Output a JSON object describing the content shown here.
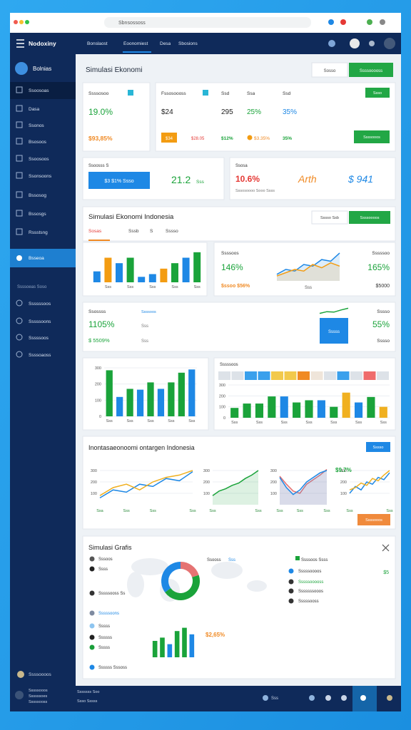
{
  "browser": {
    "address": "Sbnsossoss"
  },
  "nav": {
    "brand": "Nodoxiny",
    "links": [
      "Bonslaost",
      "Eoonomiest",
      "Desa",
      "Sbosions"
    ]
  },
  "sidebar": {
    "title": "Bolnias",
    "items": [
      "Ssoosoas",
      "Dasa",
      "Ssonos",
      "Bsosoos",
      "Ssoosoos",
      "Ssonsoons",
      "Bssosog",
      "Bssosgs",
      "Rssstsng"
    ],
    "active": "Bsseoa",
    "section": "Ssssoeas Soso",
    "items2": [
      "Ssssssoos",
      "Sssssoons",
      "Sssssoos",
      "Ssssoaoss"
    ],
    "footer": [
      "Ssssoooos",
      "Sssssooos",
      "Ssssssoes",
      "Sssssooss"
    ]
  },
  "header": {
    "title": "Simulasi Ekonomi",
    "buttons": [
      "Sosso",
      "Ssssooooss"
    ]
  },
  "kpi": {
    "growth": {
      "label": "Ssssosoo",
      "value": "19.0%",
      "sub": "$93,85%"
    },
    "budget": {
      "label": "Fssosoooss",
      "labels": [
        "Ssd",
        "Ssa",
        "Ssd"
      ],
      "values": [
        "$24",
        "295",
        "25%",
        "35%"
      ],
      "badges": [
        "$34",
        "$28.05",
        "$12%",
        "$3.35%",
        "35%"
      ],
      "buttons": [
        "Ssso",
        "Ssssooos"
      ]
    },
    "trade": {
      "label": "Ssoosss S",
      "button": "$3 $1% Ssso",
      "value": "21.2",
      "sub": "Sss"
    },
    "inflation": {
      "label": "Ssosa",
      "value": "10.6%",
      "sub": "Sssosoooo Sooo Ssss",
      "trend": "Arth",
      "index": "$ 941"
    }
  },
  "simulation": {
    "title": "Simulasi Ekonomi Indonesia",
    "tabs": [
      "Sosas",
      "Sssb",
      "S",
      "Sssso"
    ],
    "buttons": [
      "Sssso Ssb",
      "Ssssoooos"
    ],
    "bars": {
      "type": "bar",
      "ylim": [
        0,
        60
      ],
      "values": [
        20,
        45,
        35,
        45,
        10,
        15,
        25,
        35,
        45,
        55
      ],
      "colors": [
        "#1e88e5",
        "#f39c12",
        "#1e88e5",
        "#1aa33a",
        "#1e88e5",
        "#1e88e5",
        "#f39c12",
        "#1aa33a",
        "#1e88e5",
        "#1aa33a"
      ],
      "categories": [
        null,
        "Sss",
        null,
        "Sss",
        null,
        "Sss",
        null,
        "Sss",
        null,
        "Sss"
      ]
    },
    "growth": {
      "label": "Ssssoos",
      "value": "146%",
      "sub": "$ssoo $56%",
      "axis_label": "Sss",
      "line": {
        "type": "line",
        "ylim": [
          0,
          100
        ],
        "area": true,
        "series": [
          {
            "color": "#1e88e5",
            "values": [
              20,
              35,
              30,
              50,
              45,
              65,
              60,
              85
            ]
          },
          {
            "color": "#f39c12",
            "values": [
              15,
              25,
              35,
              30,
              50,
              40,
              55,
              45
            ]
          }
        ]
      },
      "right_label": "Sssssoo",
      "right_value": "165%",
      "right_sub": "$5000"
    }
  },
  "outlook": {
    "label": "Ssossss",
    "tag": "Ssssoos",
    "value": "1105%",
    "sub": "$ 5509%",
    "mini": [
      "Sss",
      "Sss"
    ],
    "line": {
      "type": "line",
      "ylim": [
        0,
        100
      ],
      "series": [
        {
          "color": "#1aa33a",
          "values": [
            20,
            40,
            35,
            60,
            80
          ]
        }
      ]
    },
    "box": "Sssss",
    "right_label": "Sssso",
    "right_value": "55%",
    "right_sub": "Sssso"
  },
  "gdp": {
    "type": "bar",
    "ylim": [
      0,
      300
    ],
    "yticks": [
      0,
      100,
      200,
      300
    ],
    "values": [
      285,
      120,
      170,
      165,
      210,
      170,
      210,
      270,
      290
    ],
    "colors": [
      "#1aa33a",
      "#1e88e5",
      "#1aa33a",
      "#1e88e5",
      "#1aa33a",
      "#1e88e5",
      "#1aa33a",
      "#1aa33a",
      "#1e88e5"
    ],
    "categories": [
      "Sss",
      null,
      "Sss",
      null,
      "Sss",
      null,
      "Sss",
      null,
      "Sss"
    ]
  },
  "sectors": {
    "label": "Sssssoos",
    "type": "bar",
    "ylim": [
      0,
      300
    ],
    "yticks": [
      0,
      100,
      200,
      300
    ],
    "values": [
      90,
      130,
      130,
      195,
      195,
      140,
      160,
      160,
      100,
      230,
      140,
      190,
      100
    ],
    "colors": [
      "#1aa33a",
      "#1aa33a",
      "#1aa33a",
      "#1aa33a",
      "#1e88e5",
      "#1aa33a",
      "#1aa33a",
      "#1e88e5",
      "#1aa33a",
      "#f0b020",
      "#1e88e5",
      "#1aa33a",
      "#f0b020"
    ],
    "categories": [
      "Sss",
      null,
      "Sss",
      null,
      "Sss",
      null,
      "Sss",
      null,
      "Sss",
      null,
      "Sss",
      null,
      "Sss"
    ]
  },
  "forecast": {
    "title": "Inontasaeonoomi ontargen Indonesia",
    "button": "Sssso",
    "action": "Ssssooos",
    "label": "$9.7%",
    "charts": [
      {
        "type": "line",
        "ylim": [
          0,
          350
        ],
        "yticks": [
          100,
          200,
          300
        ],
        "categories": [
          "Ssa",
          null,
          "Sss",
          null,
          "Sss",
          null,
          null,
          "Sss"
        ],
        "series": [
          {
            "color": "#1e88e5",
            "values": [
              60,
              130,
              110,
              180,
              160,
              230,
              210,
              290
            ]
          },
          {
            "color": "#f0b020",
            "values": [
              80,
              150,
              180,
              130,
              200,
              240,
              260,
              300
            ]
          }
        ]
      },
      {
        "type": "line",
        "ylim": [
          0,
          350
        ],
        "yticks": [
          100,
          200,
          300
        ],
        "area": true,
        "categories": [
          "Sss",
          null,
          null,
          null,
          null,
          null,
          null,
          "Sss"
        ],
        "series": [
          {
            "color": "#1aa33a",
            "values": [
              80,
              120,
              140,
              170,
              190,
              230,
              260,
              300
            ]
          }
        ]
      },
      {
        "type": "line",
        "ylim": [
          0,
          350
        ],
        "yticks": [
          100,
          200,
          300
        ],
        "area": true,
        "categories": [
          "Sss",
          null,
          null,
          "Sss",
          null,
          null,
          null,
          "Sss"
        ],
        "series": [
          {
            "color": "#e57373",
            "values": [
              250,
              180,
              120,
              100,
              180,
              220,
              260,
              310
            ]
          },
          {
            "color": "#1e88e5",
            "values": [
              240,
              150,
              90,
              130,
              200,
              240,
              280,
              300
            ]
          }
        ]
      },
      {
        "type": "line",
        "ylim": [
          0,
          350
        ],
        "yticks": [
          100,
          200,
          300
        ],
        "categories": [
          "Sss",
          null,
          null,
          null,
          null,
          null,
          null,
          "Sss"
        ],
        "series": [
          {
            "color": "#1e88e5",
            "values": [
              100,
              160,
              130,
              200,
              180,
              240,
              220,
              280
            ]
          },
          {
            "color": "#f0b020",
            "values": [
              130,
              150,
              190,
              170,
              230,
              210,
              260,
              300
            ]
          }
        ]
      }
    ]
  },
  "analysis": {
    "title": "Simulasi Grafis",
    "list": [
      "Sssoos",
      "Ssss",
      "Sssssooss Ss",
      "Sssssoons",
      "Sssss",
      "Ssssss",
      "Sssss",
      "Ssssss Sssoss"
    ],
    "map_labels": [
      "Ssooss",
      "Sss"
    ],
    "donut": {
      "type": "pie",
      "values": [
        20,
        45,
        35
      ],
      "colors": [
        "#e57373",
        "#1aa33a",
        "#1e88e5"
      ]
    },
    "right_title": "Ssssoos Ssss",
    "right_list": [
      "Sssssoooos",
      "Sssssooooss",
      "Sssssssooos",
      "Sssssooss"
    ],
    "right_value": "$5",
    "bars": {
      "type": "bar",
      "ylim": [
        0,
        50
      ],
      "values": [
        25,
        30,
        20,
        40,
        45,
        35
      ],
      "colors": [
        "#1aa33a",
        "#1aa33a",
        "#1e88e5",
        "#1aa33a",
        "#1aa33a",
        "#1e88e5"
      ]
    },
    "bars_value": "$2,65%"
  },
  "statusbar": [
    "Sssssss Soo",
    "Ssso Sssss",
    "Sss"
  ]
}
